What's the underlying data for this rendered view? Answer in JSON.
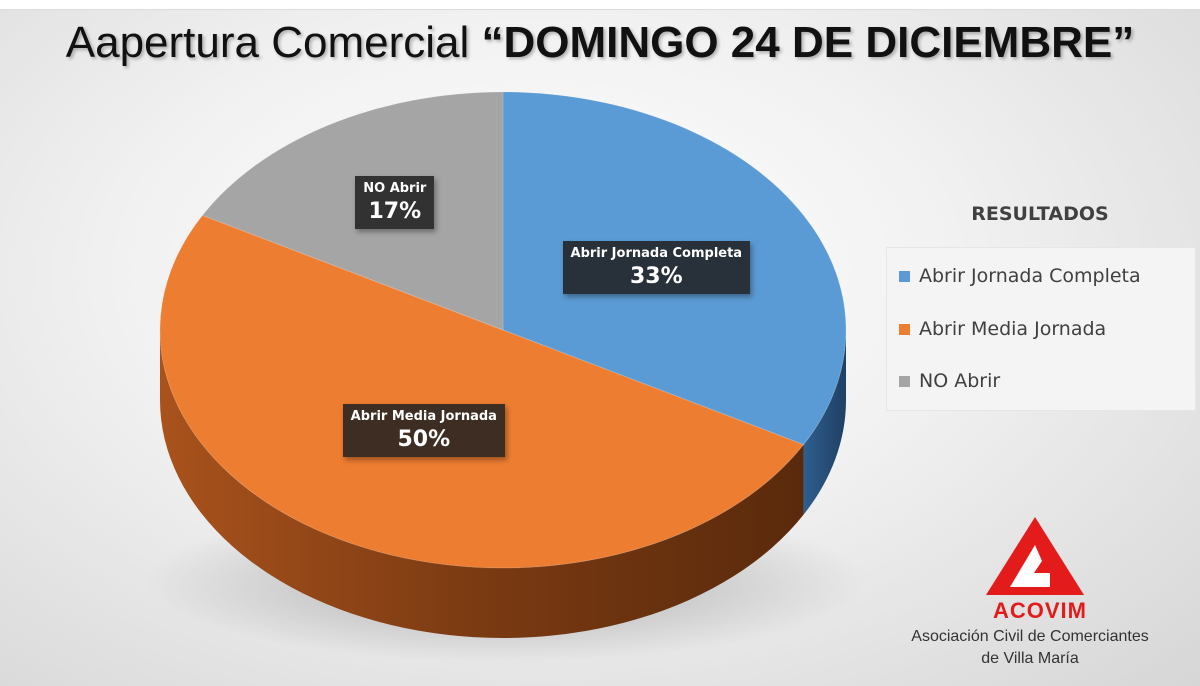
{
  "title": {
    "prefix": "Aapertura Comercial ",
    "highlight": "“DOMINGO 24 DE DICIEMBRE”"
  },
  "chart_data": {
    "type": "pie",
    "style": "3d",
    "categories": [
      "Abrir Jornada Completa",
      "Abrir Media Jornada",
      "NO Abrir"
    ],
    "values": [
      33,
      50,
      17
    ],
    "value_labels": [
      "33%",
      "50%",
      "17%"
    ],
    "colors": [
      "#5b9bd5",
      "#ed7d31",
      "#a5a5a5"
    ],
    "legend": {
      "title": "RESULTADOS",
      "placement": "right",
      "items": [
        "Abrir Jornada Completa",
        "Abrir Media Jornada",
        "NO Abrir"
      ]
    }
  },
  "logo": {
    "name": "ACOVIM",
    "subtitle_line1": "Asociación Civil de Comerciantes",
    "subtitle_line2": "de Villa María",
    "color": "#e31b1b"
  }
}
